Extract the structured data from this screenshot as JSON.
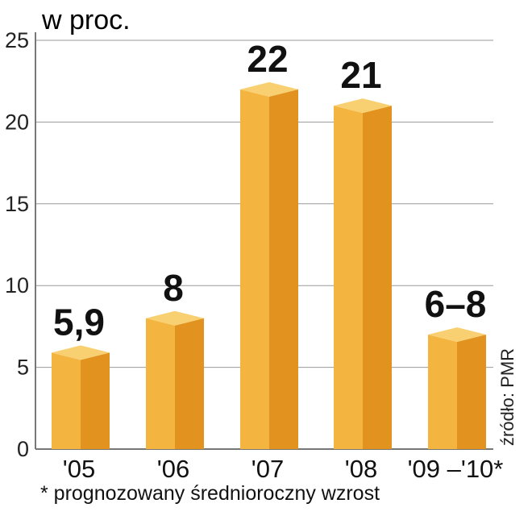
{
  "chart_data": {
    "type": "bar",
    "unit_label": "w proc.",
    "categories": [
      "'05",
      "'06",
      "'07",
      "'08",
      "'09 –'10*"
    ],
    "values": [
      5.9,
      8,
      22,
      21,
      7
    ],
    "value_labels": [
      "5,9",
      "8",
      "22",
      "21",
      "6–8"
    ],
    "ylim": [
      0,
      25
    ],
    "yticks": [
      0,
      5,
      10,
      15,
      20,
      25
    ],
    "grid": true,
    "source": "źródło: PMR",
    "footnote": "* prognozowany średnioroczny wzrost",
    "colors": {
      "front": "#f3b53f",
      "side": "#e2921f",
      "top": "#f9d071",
      "grid": "#999999",
      "axis": "#777777"
    }
  }
}
